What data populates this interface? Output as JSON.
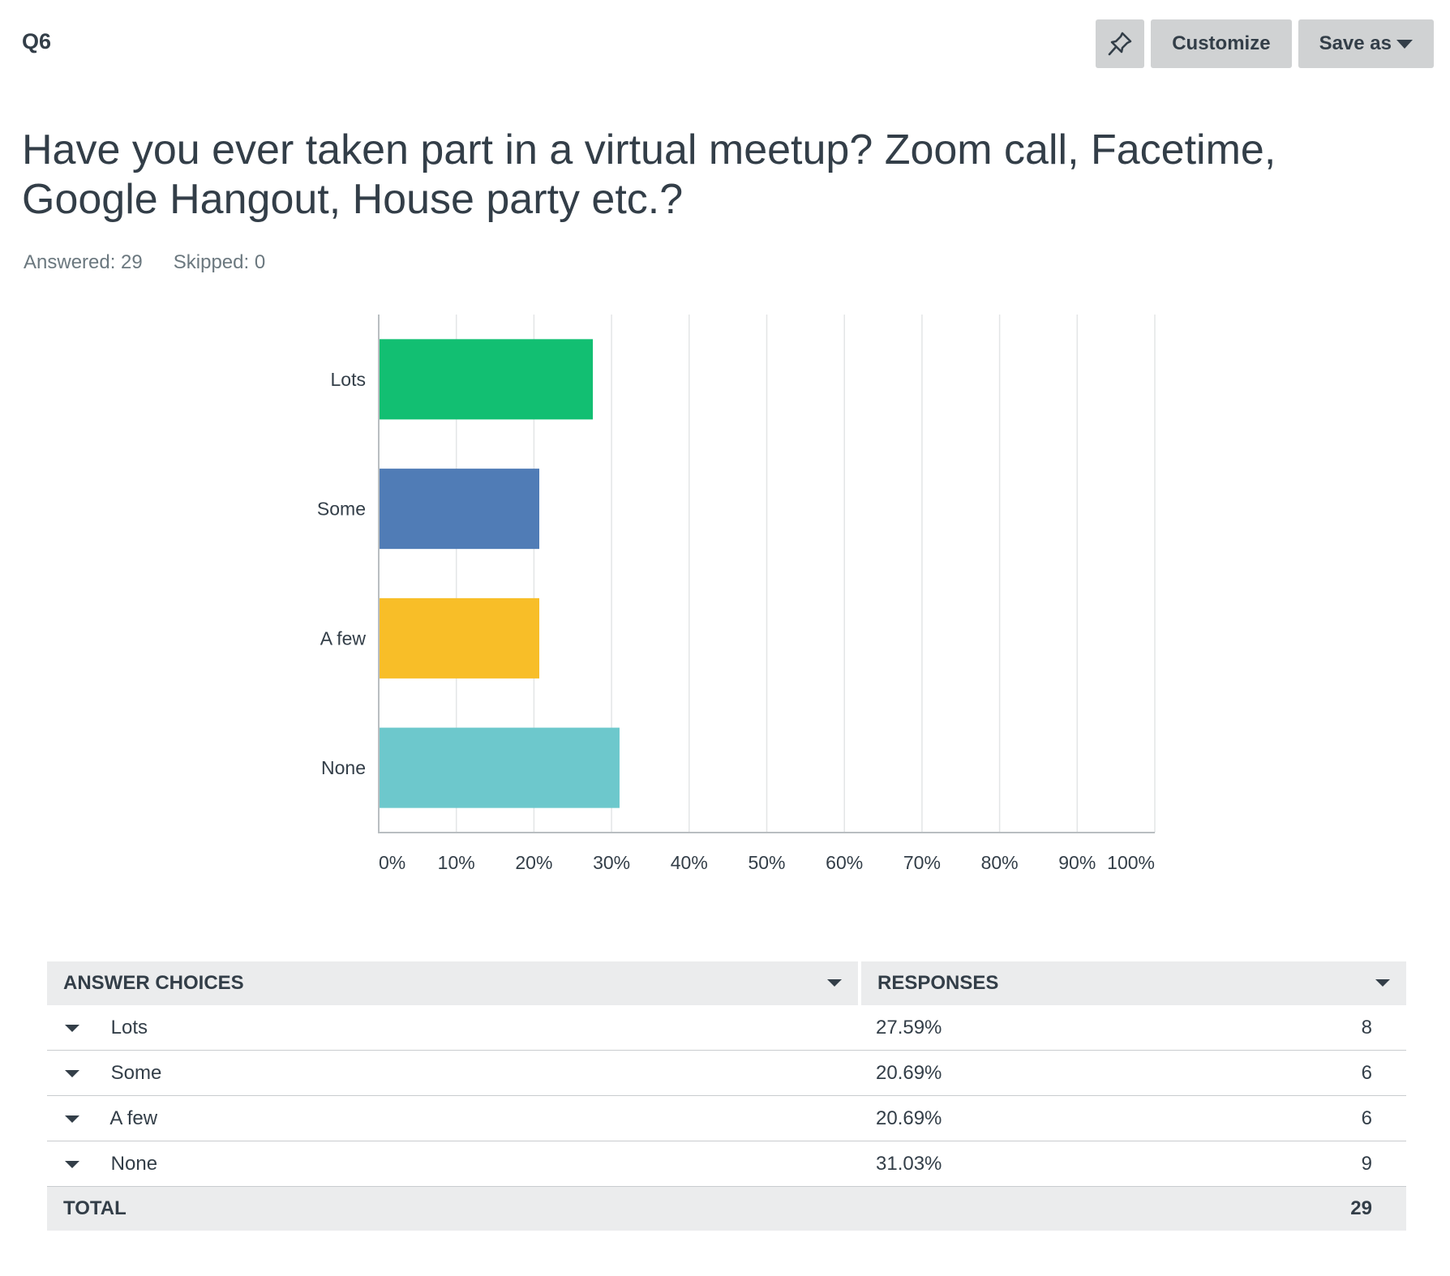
{
  "header": {
    "question_number": "Q6",
    "customize_label": "Customize",
    "save_as_label": "Save as"
  },
  "question": {
    "text": "Have you ever taken part in a virtual meetup? Zoom call, Facetime, Google Hangout, House party etc.?",
    "answered": "Answered: 29",
    "skipped": "Skipped: 0"
  },
  "chart_data": {
    "type": "bar",
    "orientation": "horizontal",
    "categories": [
      "Lots",
      "Some",
      "A few",
      "None"
    ],
    "values": [
      27.59,
      20.69,
      20.69,
      31.03
    ],
    "colors": [
      "#12bf72",
      "#507cb6",
      "#f8be28",
      "#6dc8cc"
    ],
    "xlim": [
      0,
      100
    ],
    "xticks": [
      "0%",
      "10%",
      "20%",
      "30%",
      "40%",
      "50%",
      "60%",
      "70%",
      "80%",
      "90%",
      "100%"
    ],
    "grid": true
  },
  "table": {
    "headers": {
      "choices": "ANSWER CHOICES",
      "responses": "RESPONSES"
    },
    "rows": [
      {
        "label": "Lots",
        "percent": "27.59%",
        "count": "8"
      },
      {
        "label": "Some",
        "percent": "20.69%",
        "count": "6"
      },
      {
        "label": "A few",
        "percent": "20.69%",
        "count": "6"
      },
      {
        "label": "None",
        "percent": "31.03%",
        "count": "9"
      }
    ],
    "total_label": "TOTAL",
    "total_count": "29"
  }
}
